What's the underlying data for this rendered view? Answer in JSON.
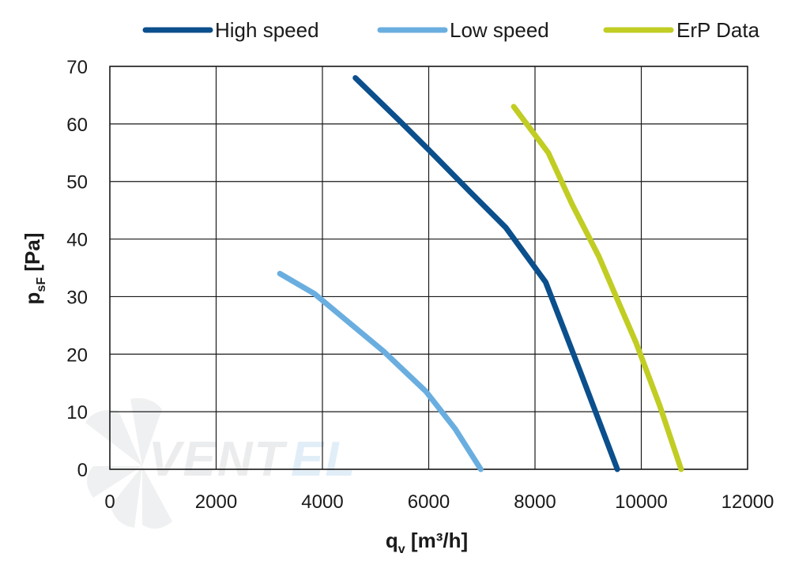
{
  "chart_data": {
    "type": "line",
    "title": "",
    "xlabel": {
      "main": "q",
      "sub": "v",
      "unit": " [m³/h]"
    },
    "ylabel": {
      "main": "p",
      "sub": "sF",
      "unit": " [Pa]"
    },
    "xlim": [
      0,
      12000
    ],
    "ylim": [
      0,
      70
    ],
    "xticks": [
      0,
      2000,
      4000,
      6000,
      8000,
      10000,
      12000
    ],
    "yticks": [
      0,
      10,
      20,
      30,
      40,
      50,
      60,
      70
    ],
    "grid": true,
    "legend_position": "top",
    "series": [
      {
        "name": "High speed",
        "color": "#0b4f8c",
        "x": [
          4620,
          5400,
          6000,
          6800,
          7450,
          8200,
          8850,
          9550
        ],
        "y": [
          68,
          61,
          55.5,
          48,
          42,
          32.5,
          17,
          0
        ]
      },
      {
        "name": "Low speed",
        "color": "#6aaee0",
        "x": [
          3200,
          3850,
          4500,
          5150,
          5950,
          6500,
          6980
        ],
        "y": [
          34,
          30.5,
          25.5,
          20.5,
          13.5,
          7,
          0
        ]
      },
      {
        "name": "ErP Data",
        "color": "#c1cd23",
        "x": [
          7600,
          8250,
          8700,
          9200,
          9550,
          9900,
          10350,
          10750
        ],
        "y": [
          63,
          55,
          46,
          37,
          29.5,
          22,
          11,
          0
        ]
      }
    ]
  },
  "watermark": {
    "text_part1": "VENT",
    "text_part2": "EL"
  }
}
